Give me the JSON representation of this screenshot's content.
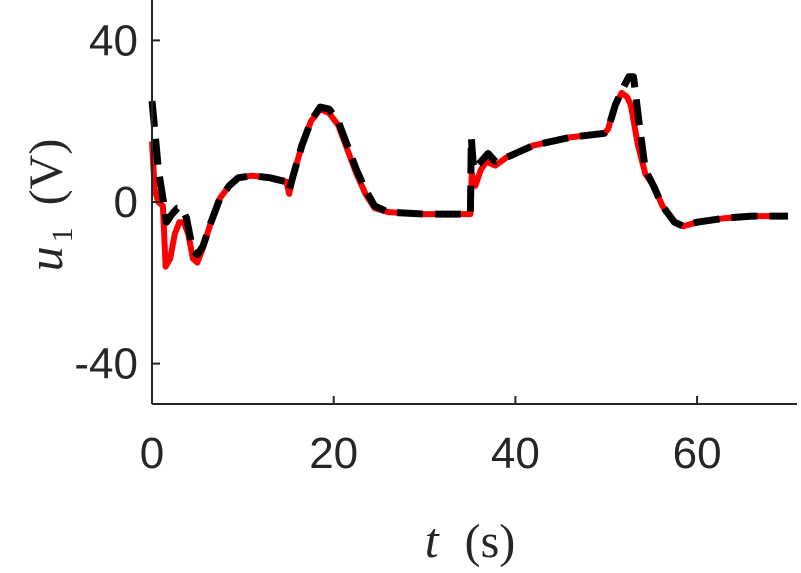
{
  "chart_data": {
    "type": "line",
    "title": "",
    "xlabel": {
      "symbol": "t",
      "unit": "(s)"
    },
    "ylabel": {
      "symbol": "u",
      "subscript": "1",
      "unit": "(V)"
    },
    "xlim": [
      0,
      71
    ],
    "ylim": [
      -50,
      50
    ],
    "xticks": [
      0,
      20,
      40,
      60
    ],
    "yticks": [
      -40,
      0,
      40
    ],
    "x_tick_labels": [
      "0",
      "20",
      "40",
      "60"
    ],
    "y_tick_labels": [
      "-40",
      "0",
      "40"
    ],
    "grid": false,
    "legend": "none",
    "series": [
      {
        "color": "#ff0000",
        "style": "solid",
        "points": [
          [
            0,
            15
          ],
          [
            0.3,
            3
          ],
          [
            0.7,
            0
          ],
          [
            1.2,
            -1
          ],
          [
            1.5,
            -16
          ],
          [
            2.0,
            -14
          ],
          [
            2.5,
            -8
          ],
          [
            3.0,
            -5
          ],
          [
            3.5,
            -5
          ],
          [
            4.0,
            -8
          ],
          [
            4.5,
            -14
          ],
          [
            5.0,
            -15
          ],
          [
            5.5,
            -12
          ],
          [
            6.5,
            -5
          ],
          [
            7.5,
            1
          ],
          [
            8.5,
            4
          ],
          [
            9.5,
            6
          ],
          [
            11,
            6.5
          ],
          [
            13,
            6
          ],
          [
            14.8,
            5
          ],
          [
            15.1,
            2
          ],
          [
            15.6,
            7
          ],
          [
            16.5,
            14
          ],
          [
            17.5,
            20
          ],
          [
            18.5,
            23
          ],
          [
            19.5,
            22
          ],
          [
            20.5,
            19
          ],
          [
            21.5,
            13
          ],
          [
            22.5,
            7
          ],
          [
            23.5,
            2
          ],
          [
            24.5,
            -1.5
          ],
          [
            26,
            -2.5
          ],
          [
            30,
            -3
          ],
          [
            34.8,
            -3
          ],
          [
            35.05,
            -3
          ],
          [
            35.2,
            7
          ],
          [
            35.6,
            4
          ],
          [
            36.2,
            8
          ],
          [
            36.8,
            10
          ],
          [
            37.8,
            9
          ],
          [
            39,
            11
          ],
          [
            42,
            14
          ],
          [
            46,
            16
          ],
          [
            49.8,
            17
          ],
          [
            50.2,
            18
          ],
          [
            51,
            24
          ],
          [
            51.7,
            27
          ],
          [
            52.3,
            26
          ],
          [
            52.7,
            24
          ],
          [
            53.5,
            14
          ],
          [
            54.3,
            7
          ],
          [
            55.2,
            4
          ],
          [
            56.2,
            -1
          ],
          [
            57.5,
            -5
          ],
          [
            58.5,
            -6
          ],
          [
            60,
            -5
          ],
          [
            63,
            -4
          ],
          [
            66,
            -3.5
          ],
          [
            70,
            -3.5
          ]
        ]
      },
      {
        "color": "#000000",
        "style": "dashed",
        "points": [
          [
            0,
            25
          ],
          [
            0.3,
            18
          ],
          [
            0.7,
            8
          ],
          [
            1.2,
            1
          ],
          [
            1.6,
            -5
          ],
          [
            2.2,
            -3
          ],
          [
            2.8,
            -1.5
          ],
          [
            3.3,
            -1.5
          ],
          [
            3.8,
            -4
          ],
          [
            4.5,
            -12
          ],
          [
            5.0,
            -13
          ],
          [
            5.6,
            -11
          ],
          [
            6.5,
            -5
          ],
          [
            7.5,
            1
          ],
          [
            8.5,
            4
          ],
          [
            9.5,
            6
          ],
          [
            11,
            6.5
          ],
          [
            13,
            6
          ],
          [
            14.8,
            5
          ],
          [
            15.1,
            3
          ],
          [
            15.6,
            7
          ],
          [
            16.5,
            14
          ],
          [
            17.5,
            20
          ],
          [
            18.5,
            23.5
          ],
          [
            19.5,
            23
          ],
          [
            20.5,
            20
          ],
          [
            21.5,
            14
          ],
          [
            22.5,
            8
          ],
          [
            23.5,
            3
          ],
          [
            24.5,
            -1
          ],
          [
            26,
            -2.5
          ],
          [
            30,
            -3
          ],
          [
            34.8,
            -3
          ],
          [
            35.05,
            -3
          ],
          [
            35.15,
            16
          ],
          [
            35.4,
            8
          ],
          [
            36.2,
            10
          ],
          [
            37,
            12
          ],
          [
            37.8,
            10
          ],
          [
            39,
            11
          ],
          [
            42,
            14
          ],
          [
            46,
            16
          ],
          [
            49.8,
            17
          ],
          [
            50.2,
            18
          ],
          [
            51,
            24
          ],
          [
            51.8,
            28
          ],
          [
            52.5,
            31
          ],
          [
            53.0,
            31
          ],
          [
            53.6,
            20
          ],
          [
            54.3,
            8
          ],
          [
            55.2,
            4
          ],
          [
            56.2,
            -1
          ],
          [
            57.5,
            -5
          ],
          [
            58.5,
            -6
          ],
          [
            60,
            -5
          ],
          [
            63,
            -4
          ],
          [
            66,
            -3.5
          ],
          [
            70,
            -3.5
          ]
        ]
      }
    ]
  }
}
